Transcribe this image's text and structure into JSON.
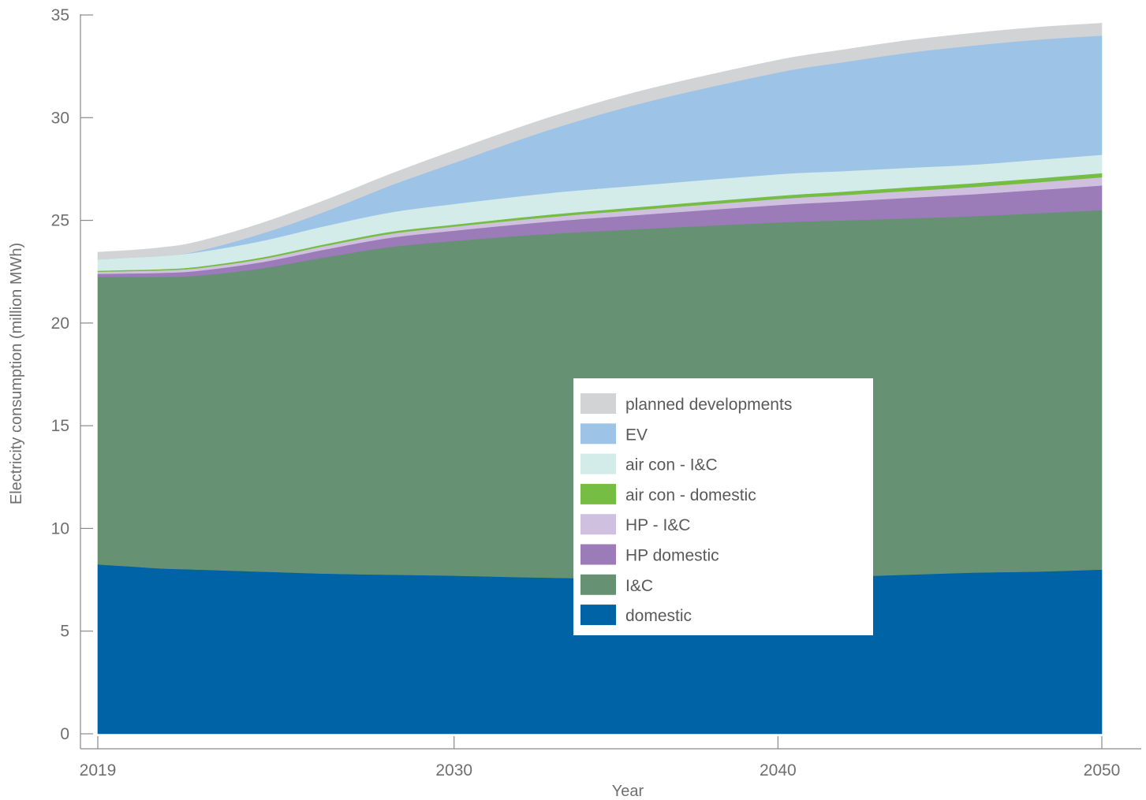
{
  "chart_data": {
    "type": "area",
    "stacked": true,
    "title": "",
    "xlabel": "Year",
    "ylabel": "Electricity consumption (million MWh)",
    "xlim": [
      2019,
      2050
    ],
    "ylim": [
      0,
      35
    ],
    "x_ticks": [
      2019,
      2030,
      2040,
      2050
    ],
    "y_ticks": [
      0,
      5,
      10,
      15,
      20,
      25,
      30,
      35
    ],
    "grid": false,
    "legend_position": "center-right",
    "x": [
      2019,
      2020,
      2021,
      2022,
      2024,
      2026,
      2028,
      2030,
      2033,
      2036,
      2040,
      2042,
      2044,
      2046,
      2048,
      2050
    ],
    "series": [
      {
        "name": "domestic",
        "color": "#0063a6",
        "values": [
          8.25,
          8.15,
          8.05,
          8.0,
          7.9,
          7.8,
          7.75,
          7.7,
          7.6,
          7.55,
          7.55,
          7.65,
          7.75,
          7.85,
          7.9,
          8.0
        ]
      },
      {
        "name": "I&C",
        "color": "#669273",
        "values": [
          14.0,
          14.1,
          14.2,
          14.3,
          14.75,
          15.4,
          15.95,
          16.3,
          16.75,
          17.05,
          17.35,
          17.35,
          17.35,
          17.35,
          17.45,
          17.5
        ]
      },
      {
        "name": "HP domestic",
        "color": "#9b7bb8",
        "values": [
          0.15,
          0.17,
          0.2,
          0.23,
          0.3,
          0.38,
          0.45,
          0.5,
          0.6,
          0.7,
          0.85,
          0.92,
          1.0,
          1.07,
          1.13,
          1.2
        ]
      },
      {
        "name": "HP - I&C",
        "color": "#cfc0df",
        "values": [
          0.1,
          0.11,
          0.12,
          0.13,
          0.15,
          0.17,
          0.19,
          0.2,
          0.22,
          0.25,
          0.29,
          0.31,
          0.33,
          0.35,
          0.37,
          0.4
        ]
      },
      {
        "name": "air con - domestic",
        "color": "#76be43",
        "values": [
          0.05,
          0.06,
          0.06,
          0.07,
          0.08,
          0.09,
          0.1,
          0.1,
          0.12,
          0.14,
          0.16,
          0.17,
          0.18,
          0.19,
          0.2,
          0.2
        ]
      },
      {
        "name": "air con - I&C",
        "color": "#d3ecea",
        "values": [
          0.55,
          0.6,
          0.65,
          0.7,
          0.8,
          0.88,
          0.94,
          1.0,
          1.05,
          1.05,
          1.05,
          1.0,
          0.95,
          0.9,
          0.9,
          0.9
        ]
      },
      {
        "name": "EV",
        "color": "#9dc3e6",
        "values": [
          0.0,
          0.0,
          0.0,
          0.05,
          0.35,
          0.7,
          1.3,
          2.0,
          3.1,
          4.05,
          4.95,
          5.3,
          5.6,
          5.8,
          5.85,
          5.8
        ]
      },
      {
        "name": "planned developments",
        "color": "#d2d3d5",
        "values": [
          0.35,
          0.35,
          0.4,
          0.45,
          0.5,
          0.55,
          0.55,
          0.6,
          0.6,
          0.6,
          0.6,
          0.6,
          0.6,
          0.6,
          0.6,
          0.6
        ]
      }
    ]
  }
}
